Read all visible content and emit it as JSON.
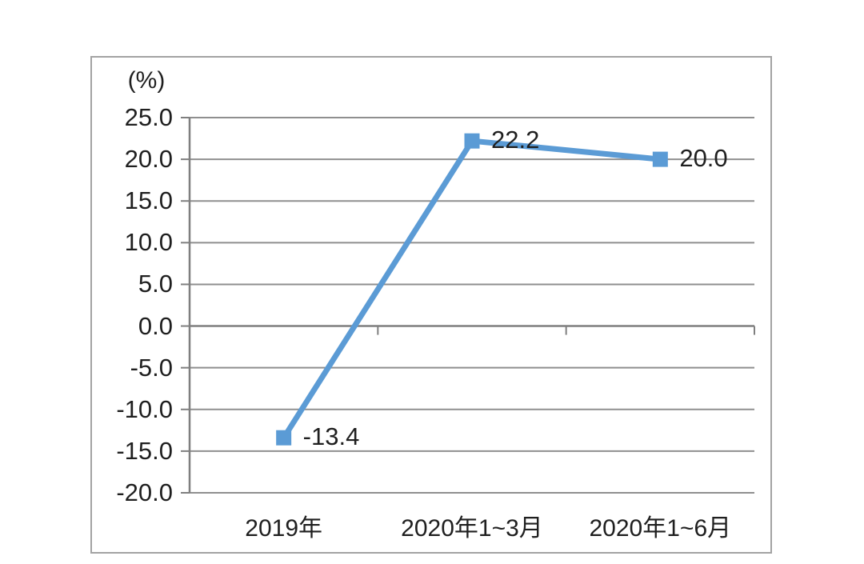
{
  "chart_data": {
    "type": "line",
    "title": "",
    "unit_label": "(%)",
    "categories": [
      "2019年",
      "2020年1~3月",
      "2020年1~6月"
    ],
    "series": [
      {
        "name": "series-1",
        "values": [
          -13.4,
          22.2,
          20.0
        ]
      }
    ],
    "data_labels": [
      "-13.4",
      "22.2",
      "20.0"
    ],
    "y_tick_values": [
      25,
      20,
      15,
      10,
      5,
      0,
      -5,
      -10,
      -15,
      -20
    ],
    "y_tick_labels": [
      "25.0",
      "20.0",
      "15.0",
      "10.0",
      "5.0",
      "0.0",
      "-5.0",
      "-10.0",
      "-15.0",
      "-20.0"
    ],
    "ylim": [
      -20,
      25
    ],
    "xlabel": "",
    "ylabel": "(%)",
    "grid": true,
    "legend": "none",
    "marker": "square",
    "colors": {
      "line": "#5b9bd5",
      "marker": "#5b9bd5",
      "gridline": "#8f8f8f",
      "axis": "#7f7f7f",
      "frame_border": "#a3a3a3",
      "text": "#1f1f1f",
      "background": "#ffffff"
    }
  }
}
